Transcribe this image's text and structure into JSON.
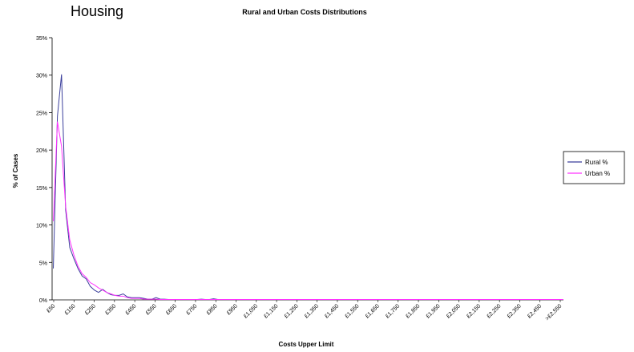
{
  "page": {
    "heading": "Housing"
  },
  "chart_data": {
    "type": "line",
    "title": "Rural and Urban Costs Distributions",
    "xlabel": "Costs Upper Limit",
    "ylabel": "% of Cases",
    "ylim": [
      0,
      35
    ],
    "y_ticks": [
      "0%",
      "5%",
      "10%",
      "15%",
      "20%",
      "25%",
      "30%",
      "35%"
    ],
    "x_tick_labels": [
      "£50",
      "£150",
      "£250",
      "£350",
      "£450",
      "£550",
      "£650",
      "£750",
      "£850",
      "£950",
      "£1,050",
      "£1,150",
      "£1,250",
      "£1,350",
      "£1,450",
      "£1,550",
      "£1,650",
      "£1,750",
      "£1,850",
      "£1,950",
      "£2,050",
      "£2,150",
      "£2,250",
      "£2,350",
      "£2,450",
      ">£2,550"
    ],
    "grid": false,
    "legend": "right",
    "series": [
      {
        "name": "Rural %",
        "color": "#3b3f9c",
        "values": [
          4.2,
          24.5,
          30.1,
          12.0,
          7.0,
          5.5,
          4.2,
          3.2,
          2.8,
          1.8,
          1.3,
          1.0,
          1.4,
          1.0,
          0.7,
          0.6,
          0.6,
          0.8,
          0.4,
          0.3,
          0.3,
          0.3,
          0.2,
          0.1,
          0.1,
          0.3,
          0.1,
          0.1,
          0.05,
          0.05,
          0.05,
          0.05,
          0.05,
          0.05,
          0.05,
          0.05,
          0.1,
          0.05,
          0.05,
          0.15,
          0.05,
          0.05,
          0.05,
          0.05,
          0.05,
          0.05,
          0.05,
          0.05,
          0.05,
          0.05,
          0.05,
          0.05,
          0.05,
          0.05,
          0.05,
          0.05,
          0.05,
          0.05,
          0.05,
          0.05,
          0.05,
          0.05,
          0.05,
          0.05,
          0.05,
          0.05,
          0.05,
          0.05,
          0.05,
          0.05,
          0.05,
          0.05,
          0.05,
          0.05,
          0.05,
          0.05,
          0.05,
          0.05,
          0.05,
          0.05,
          0.05,
          0.05,
          0.05,
          0.05,
          0.05,
          0.05,
          0.05,
          0.05,
          0.05,
          0.05,
          0.05,
          0.05,
          0.05,
          0.05,
          0.05,
          0.05,
          0.05,
          0.05,
          0.05,
          0.05,
          0.05,
          0.05,
          0.05,
          0.05,
          0.05,
          0.05,
          0.05,
          0.05,
          0.05,
          0.05,
          0.05,
          0.05,
          0.05,
          0.05,
          0.05,
          0.05,
          0.05,
          0.05,
          0.05,
          0.05,
          0.05,
          0.05,
          0.05,
          0.05,
          0.05
        ]
      },
      {
        "name": "Urban %",
        "color": "#ff33ff",
        "values": [
          10.5,
          23.8,
          20.5,
          12.5,
          8.0,
          6.0,
          4.5,
          3.5,
          3.0,
          2.3,
          2.0,
          1.6,
          1.3,
          1.0,
          0.8,
          0.6,
          0.5,
          0.5,
          0.3,
          0.2,
          0.2,
          0.2,
          0.1,
          0.1,
          0.1,
          0.1,
          0.05,
          0.05,
          0.05,
          0.05,
          0.05,
          0.05,
          0.05,
          0.05,
          0.05,
          0.05,
          0.05,
          0.05,
          0.05,
          0.05,
          0.05,
          0.05,
          0.05,
          0.05,
          0.05,
          0.05,
          0.05,
          0.05,
          0.05,
          0.05,
          0.05,
          0.05,
          0.05,
          0.05,
          0.05,
          0.05,
          0.05,
          0.05,
          0.05,
          0.05,
          0.05,
          0.05,
          0.05,
          0.05,
          0.05,
          0.05,
          0.05,
          0.05,
          0.05,
          0.05,
          0.05,
          0.05,
          0.05,
          0.05,
          0.05,
          0.05,
          0.05,
          0.05,
          0.05,
          0.05,
          0.05,
          0.05,
          0.05,
          0.05,
          0.05,
          0.05,
          0.05,
          0.05,
          0.05,
          0.05,
          0.05,
          0.05,
          0.05,
          0.05,
          0.05,
          0.05,
          0.05,
          0.05,
          0.05,
          0.05,
          0.05,
          0.05,
          0.05,
          0.05,
          0.05,
          0.05,
          0.05,
          0.05,
          0.05,
          0.05,
          0.05,
          0.05,
          0.05,
          0.05,
          0.05,
          0.05,
          0.05,
          0.05,
          0.05,
          0.05,
          0.05,
          0.05,
          0.05,
          0.05,
          0.05
        ]
      }
    ]
  }
}
